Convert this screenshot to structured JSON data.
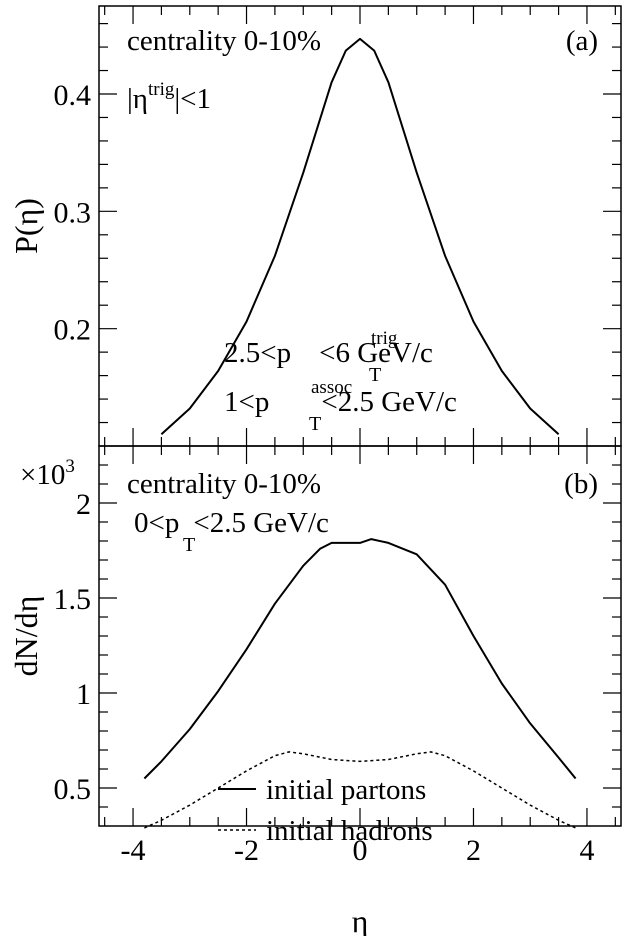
{
  "chart_data": [
    {
      "type": "line",
      "panel_label": "(a)",
      "annotations": {
        "centrality": "centrality 0-10%",
        "eta_prefix": "|η",
        "eta_sup": "trig",
        "eta_suffix": "|<1",
        "pt_trig_prefix": "2.5<p",
        "pt_trig_sup": "trig",
        "pt_trig_sub": "T",
        "pt_trig_suffix": "<6 GeV/c",
        "pt_assoc_prefix": "1<p",
        "pt_assoc_sup": "assoc",
        "pt_assoc_sub": "T",
        "pt_assoc_suffix": "<2.5 GeV/c"
      },
      "ylabel": "P(η)",
      "xlim": [
        -4.6,
        4.6
      ],
      "ylim": [
        0.1,
        0.475
      ],
      "yticks": [
        {
          "v": 0.2,
          "label": "0.2"
        },
        {
          "v": 0.3,
          "label": "0.3"
        },
        {
          "v": 0.4,
          "label": "0.4"
        }
      ],
      "series": [
        {
          "style": "solid",
          "x": [
            -3.5,
            -3.0,
            -2.5,
            -2.0,
            -1.5,
            -1.0,
            -0.5,
            -0.25,
            0.0,
            0.25,
            0.5,
            1.0,
            1.5,
            2.0,
            2.5,
            3.0,
            3.5
          ],
          "y": [
            0.11,
            0.132,
            0.164,
            0.206,
            0.262,
            0.333,
            0.41,
            0.437,
            0.447,
            0.437,
            0.41,
            0.333,
            0.262,
            0.206,
            0.164,
            0.132,
            0.11
          ]
        }
      ]
    },
    {
      "type": "line",
      "panel_label": "(b)",
      "annotations": {
        "centrality": "centrality 0-10%",
        "pt_prefix": "0<p",
        "pt_sub": "T",
        "pt_suffix": "<2.5 GeV/c",
        "multiplier": "×10",
        "multiplier_exp": "3"
      },
      "xlabel": "η",
      "ylabel": "dN/dη",
      "xlim": [
        -4.6,
        4.6
      ],
      "ylim": [
        0.3,
        2.3
      ],
      "xticks": [
        {
          "v": -4,
          "label": "-4"
        },
        {
          "v": -2,
          "label": "-2"
        },
        {
          "v": 0,
          "label": "0"
        },
        {
          "v": 2,
          "label": "2"
        },
        {
          "v": 4,
          "label": "4"
        }
      ],
      "yticks": [
        {
          "v": 0.5,
          "label": "0.5"
        },
        {
          "v": 1,
          "label": "1"
        },
        {
          "v": 1.5,
          "label": "1.5"
        },
        {
          "v": 2,
          "label": "2"
        }
      ],
      "series": [
        {
          "name": "initial partons",
          "style": "solid",
          "x": [
            -3.8,
            -3.5,
            -3.0,
            -2.5,
            -2.0,
            -1.5,
            -1.0,
            -0.7,
            -0.5,
            0.0,
            0.2,
            0.5,
            1.0,
            1.5,
            2.0,
            2.5,
            3.0,
            3.5,
            3.8
          ],
          "y": [
            0.55,
            0.64,
            0.81,
            1.01,
            1.23,
            1.47,
            1.67,
            1.76,
            1.79,
            1.79,
            1.81,
            1.79,
            1.73,
            1.57,
            1.3,
            1.05,
            0.84,
            0.66,
            0.55
          ]
        },
        {
          "name": "initial hadrons",
          "style": "dashed",
          "x": [
            -3.8,
            -3.5,
            -3.0,
            -2.5,
            -2.0,
            -1.5,
            -1.25,
            -1.0,
            -0.5,
            0.0,
            0.5,
            1.0,
            1.25,
            1.5,
            2.0,
            2.5,
            3.0,
            3.5,
            3.8
          ],
          "y": [
            0.29,
            0.33,
            0.41,
            0.5,
            0.59,
            0.67,
            0.69,
            0.68,
            0.65,
            0.64,
            0.65,
            0.68,
            0.69,
            0.67,
            0.59,
            0.5,
            0.41,
            0.33,
            0.29
          ]
        }
      ]
    }
  ]
}
